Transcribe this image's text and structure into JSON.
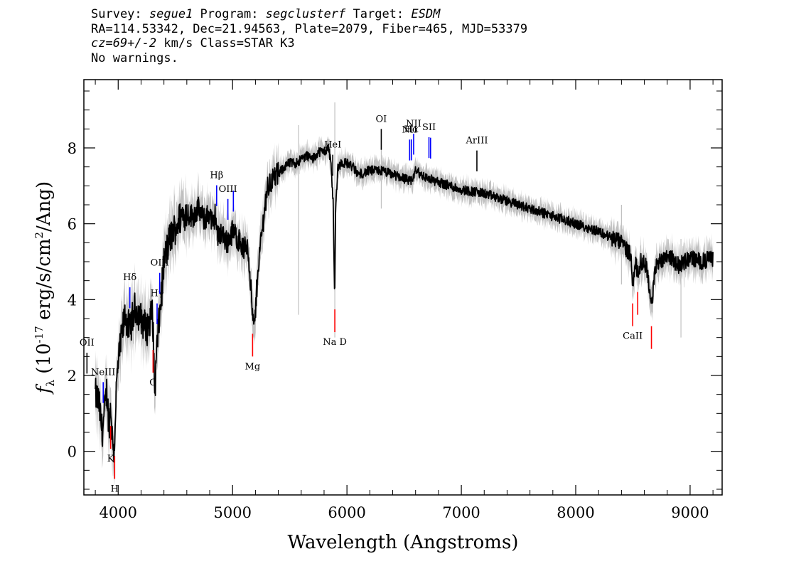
{
  "header": {
    "survey_label": "Survey: ",
    "survey": "segue1",
    "program_label": " Program: ",
    "program": "segclusterf",
    "target_label": " Target: ",
    "target": "ESDM",
    "line2": "RA=114.53342, Dec=21.94563, Plate=2079, Fiber=465, MJD=53379",
    "cz": "cz=69+/-2",
    "cz_rest": " km/s Class=STAR K3",
    "line4": "No warnings."
  },
  "chart_data": {
    "type": "line",
    "xlabel": "Wavelength (Angstroms)",
    "ylabel_prefix": "f",
    "ylabel_sub": "λ",
    "ylabel_mid": " (10",
    "ylabel_exp": "-17",
    "ylabel_unit": " erg/s/cm",
    "ylabel_unit_exp": "2",
    "ylabel_end": "/Ang)",
    "xlim": [
      3700,
      9280
    ],
    "ylim": [
      -1.15,
      9.8
    ],
    "xticks": [
      4000,
      5000,
      6000,
      7000,
      8000,
      9000
    ],
    "yticks": [
      0,
      2,
      4,
      6,
      8
    ],
    "colors": {
      "flux": "#000000",
      "error": "#c0c0c0",
      "emission": "#0000ff",
      "absorption": "#ff0000",
      "sky": "#000000"
    },
    "series": [
      {
        "role": "flux",
        "x": [
          3800,
          3830,
          3860,
          3880,
          3900,
          3920,
          3935,
          3950,
          3965,
          3980,
          4000,
          4030,
          4060,
          4100,
          4150,
          4200,
          4250,
          4300,
          4320,
          4340,
          4360,
          4380,
          4400,
          4450,
          4500,
          4550,
          4600,
          4650,
          4700,
          4750,
          4800,
          4830,
          4850,
          4870,
          4900,
          4950,
          5000,
          5050,
          5100,
          5130,
          5150,
          5170,
          5185,
          5200,
          5220,
          5250,
          5300,
          5350,
          5400,
          5450,
          5500,
          5550,
          5600,
          5650,
          5700,
          5750,
          5800,
          5840,
          5860,
          5880,
          5893,
          5900,
          5920,
          5950,
          6000,
          6050,
          6100,
          6200,
          6300,
          6400,
          6500,
          6560,
          6600,
          6700,
          6800,
          6900,
          7000,
          7200,
          7400,
          7600,
          7800,
          8000,
          8200,
          8400,
          8480,
          8498,
          8520,
          8542,
          8570,
          8620,
          8662,
          8700,
          8800,
          8900,
          9000,
          9100,
          9200
        ],
        "y": [
          1.5,
          1.3,
          0.5,
          1.0,
          1.6,
          0.7,
          1.2,
          0.3,
          0.0,
          1.4,
          2.3,
          3.0,
          3.6,
          3.2,
          3.8,
          3.5,
          3.2,
          3.7,
          1.6,
          2.8,
          3.5,
          4.2,
          5.0,
          5.6,
          5.9,
          6.2,
          6.3,
          6.2,
          6.4,
          6.1,
          6.3,
          5.9,
          6.3,
          5.6,
          5.8,
          5.5,
          5.8,
          5.6,
          5.3,
          5.5,
          4.8,
          3.8,
          3.2,
          3.6,
          4.8,
          5.6,
          6.9,
          7.2,
          7.3,
          7.5,
          7.6,
          7.6,
          7.7,
          7.8,
          7.7,
          7.9,
          7.9,
          8.0,
          7.6,
          6.5,
          3.9,
          6.3,
          7.5,
          7.6,
          7.6,
          7.5,
          7.3,
          7.4,
          7.4,
          7.3,
          7.2,
          7.1,
          7.4,
          7.2,
          7.1,
          7.0,
          6.9,
          6.8,
          6.6,
          6.4,
          6.2,
          6.0,
          5.8,
          5.5,
          5.2,
          4.4,
          5.0,
          4.7,
          5.0,
          4.9,
          3.8,
          4.9,
          5.2,
          4.9,
          5.1,
          5.0,
          5.1
        ]
      }
    ],
    "emission_lines": [
      {
        "label": "OII",
        "x": 3727
      },
      {
        "label": "NeIII",
        "x": 3869
      },
      {
        "label": "Hδ",
        "x": 4102
      },
      {
        "label": "Hγ",
        "x": 4340
      },
      {
        "label": "OIII",
        "x": 4363
      },
      {
        "label": "Hβ",
        "x": 4861
      },
      {
        "label": "OIII",
        "x": 4959
      },
      {
        "label": "OIII",
        "x": 5007
      },
      {
        "label": "HeI",
        "x": 5876
      },
      {
        "label": "OI",
        "x": 6300
      },
      {
        "label": "NII",
        "x": 6548
      },
      {
        "label": "Hα",
        "x": 6563
      },
      {
        "label": "NII",
        "x": 6583
      },
      {
        "label": "SII",
        "x": 6717
      },
      {
        "label": "SII",
        "x": 6731
      },
      {
        "label": "ArIII",
        "x": 7136
      }
    ],
    "absorption_lines": [
      {
        "label": "K",
        "x": 3934
      },
      {
        "label": "H",
        "x": 3969
      },
      {
        "label": "G",
        "x": 4305
      },
      {
        "label": "Mg",
        "x": 5175
      },
      {
        "label": "Na D",
        "x": 5894
      },
      {
        "label": "CaII",
        "x": 8498
      },
      {
        "label": "CaII",
        "x": 8542
      },
      {
        "label": "CaII",
        "x": 8662
      }
    ]
  }
}
